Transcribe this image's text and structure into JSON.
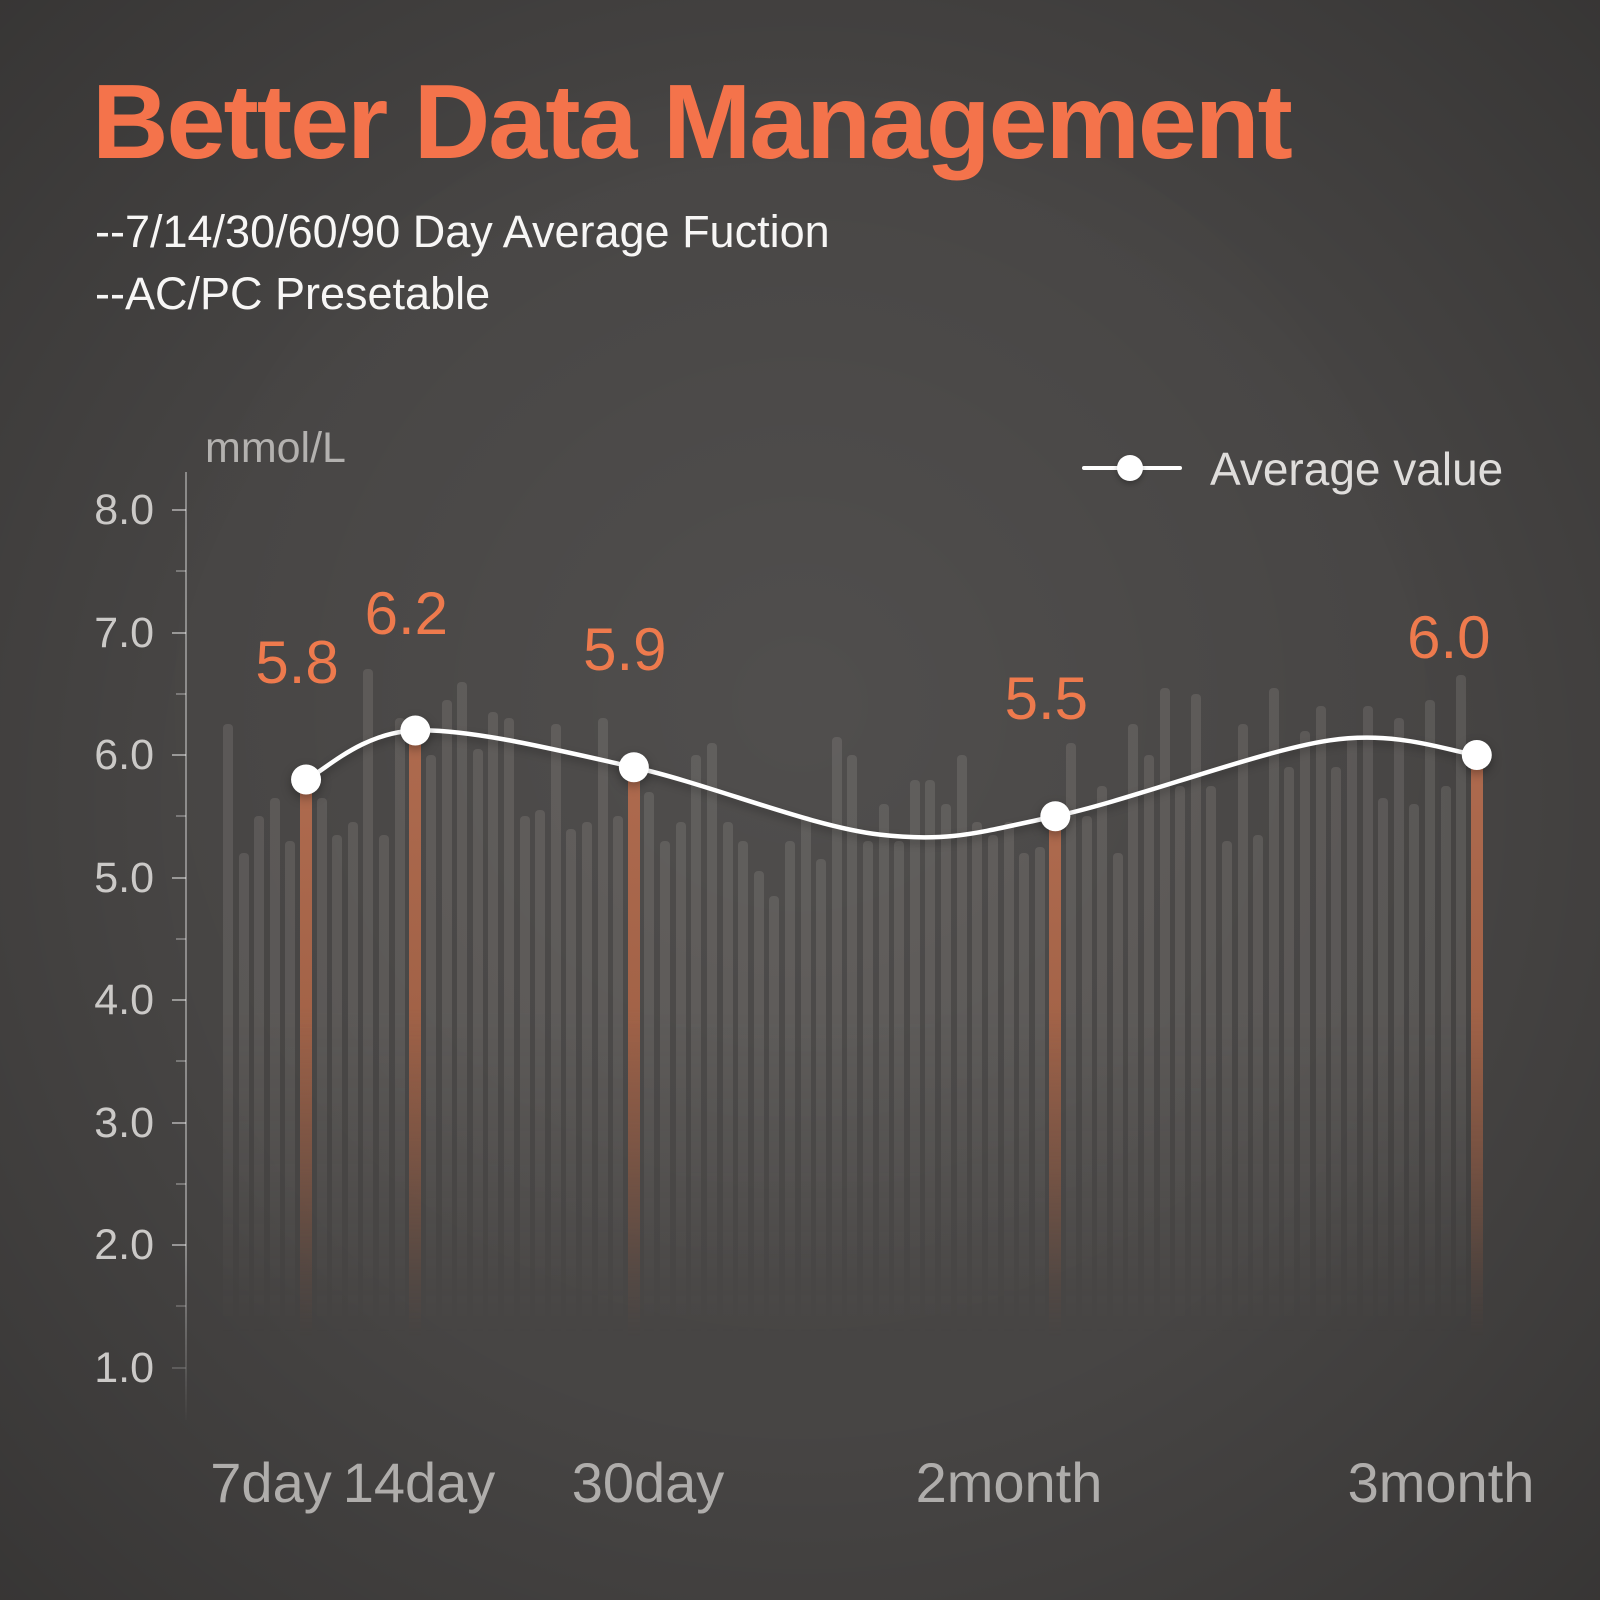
{
  "header": {
    "title": "Better Data Management",
    "subtitle_line1": "--7/14/30/60/90 Day Average Fuction",
    "subtitle_line2": "--AC/PC Presetable"
  },
  "chart_data": {
    "type": "bar",
    "title": "Blood glucose history with period averages",
    "unit_label": "mmol/L",
    "legend": {
      "label": "Average value"
    },
    "y_axis": {
      "tick_labels": [
        "8.0",
        "7.0",
        "6.0",
        "5.0",
        "4.0",
        "3.0",
        "2.0",
        "1.0"
      ],
      "range": [
        1.0,
        8.0
      ],
      "minor_tick_interval": 0.5
    },
    "x_axis": {
      "labels": [
        "7day",
        "14day",
        "30day",
        "2month",
        "3month"
      ]
    },
    "averages": {
      "series_name": "Average value",
      "categories": [
        "7day",
        "14day",
        "30day",
        "2month",
        "3month"
      ],
      "values": [
        5.8,
        6.2,
        5.9,
        5.5,
        6.0
      ]
    },
    "daily_bars": {
      "values": [
        6.25,
        5.2,
        5.5,
        5.65,
        5.3,
        5.8,
        5.65,
        5.35,
        5.45,
        6.7,
        5.35,
        6.3,
        6.2,
        6.0,
        6.45,
        6.6,
        6.05,
        6.35,
        6.3,
        5.5,
        5.55,
        6.25,
        5.4,
        5.45,
        6.3,
        5.5,
        5.9,
        5.7,
        5.3,
        5.45,
        6.0,
        6.1,
        5.45,
        5.3,
        5.05,
        4.85,
        5.3,
        5.5,
        5.15,
        6.15,
        6.0,
        5.3,
        5.6,
        5.3,
        5.8,
        5.8,
        5.6,
        6.0,
        5.45,
        5.35,
        5.45,
        5.2,
        5.25,
        5.5,
        6.1,
        5.5,
        5.75,
        5.2,
        6.25,
        6.0,
        6.55,
        5.75,
        6.5,
        5.75,
        5.3,
        6.25,
        5.35,
        6.55,
        5.9,
        6.2,
        6.4,
        5.9,
        6.15,
        6.4,
        5.65,
        6.3,
        5.6,
        6.45,
        5.75,
        6.65,
        6.0
      ],
      "highlight_indices": [
        5,
        12,
        26,
        53,
        80
      ]
    },
    "colors": {
      "accent_orange": "#F4734B",
      "value_label_orange": "#EE7A4D",
      "highlight_bar": "#AE6A4E",
      "gray_bar": "rgba(222,216,210,0.13)",
      "line": "#FFFFFF",
      "background": "#474544"
    }
  }
}
